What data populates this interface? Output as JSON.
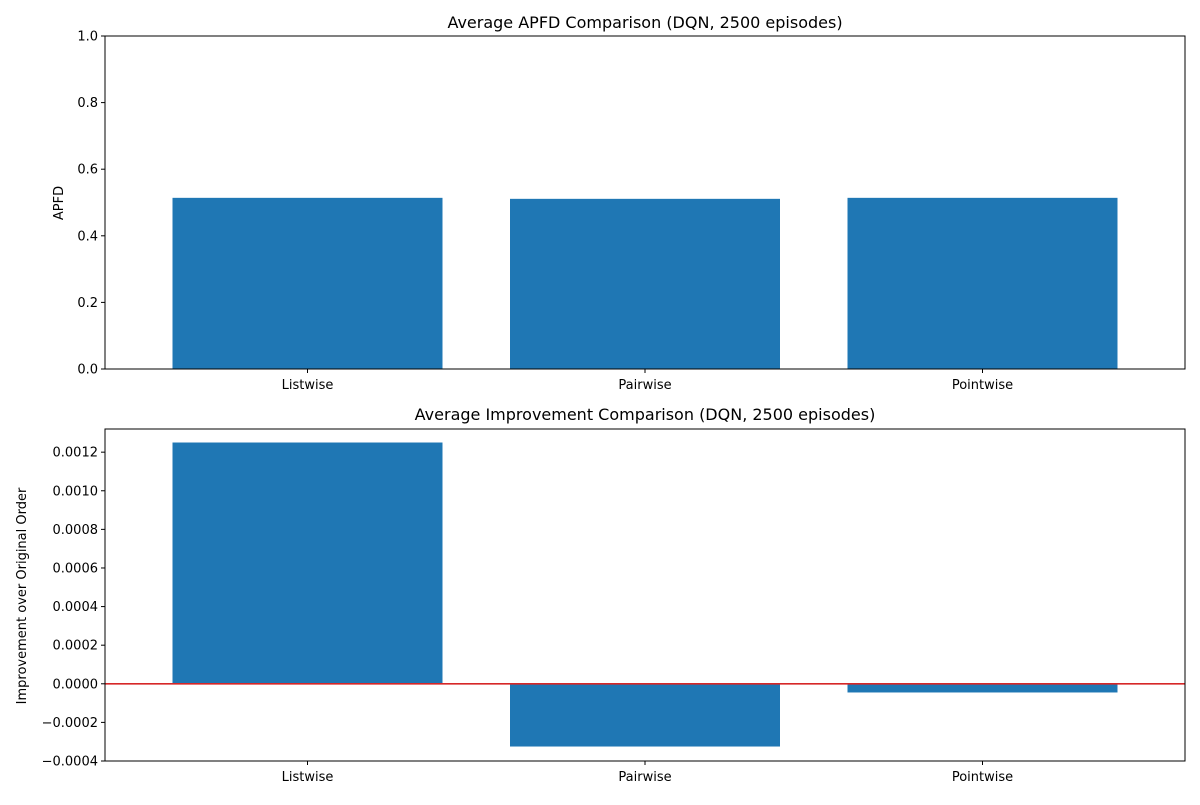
{
  "colors": {
    "bar": "#1f77b4",
    "zero_line": "#d62728",
    "axis": "#000000"
  },
  "chart_data": [
    {
      "type": "bar",
      "title": "Average APFD Comparison (DQN, 2500 episodes)",
      "xlabel": "",
      "ylabel": "APFD",
      "categories": [
        "Listwise",
        "Pairwise",
        "Pointwise"
      ],
      "values": [
        0.514,
        0.511,
        0.514
      ],
      "ylim": [
        0,
        1.0
      ],
      "yticks": [
        0.0,
        0.2,
        0.4,
        0.6,
        0.8,
        1.0
      ],
      "ytick_labels": [
        "0.0",
        "0.2",
        "0.4",
        "0.6",
        "0.8",
        "1.0"
      ],
      "grid": false,
      "zero_line": false
    },
    {
      "type": "bar",
      "title": "Average Improvement Comparison (DQN, 2500 episodes)",
      "xlabel": "",
      "ylabel": "Improvement over Original Order",
      "categories": [
        "Listwise",
        "Pairwise",
        "Pointwise"
      ],
      "values": [
        0.00125,
        -0.000325,
        -4.5e-05
      ],
      "ylim": [
        -0.0004,
        0.00132
      ],
      "yticks": [
        -0.0004,
        -0.0002,
        0.0,
        0.0002,
        0.0004,
        0.0006,
        0.0008,
        0.001,
        0.0012
      ],
      "ytick_labels": [
        "−0.0004",
        "−0.0002",
        "0.0000",
        "0.0002",
        "0.0004",
        "0.0006",
        "0.0008",
        "0.0010",
        "0.0012"
      ],
      "grid": false,
      "zero_line": true
    }
  ]
}
